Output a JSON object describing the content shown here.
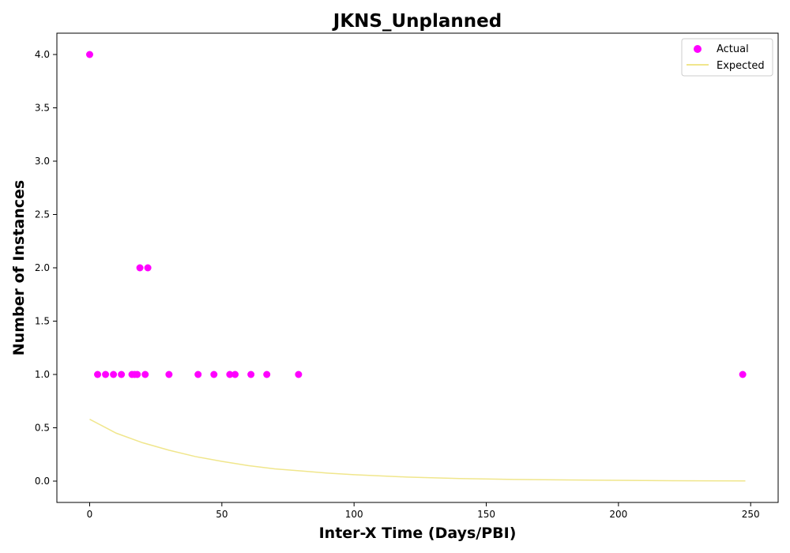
{
  "chart_data": {
    "type": "scatter",
    "title": "JKNS_Unplanned",
    "xlabel": "Inter-X Time (Days/PBI)",
    "ylabel": "Number of Instances",
    "xlim": [
      -12.4,
      260.4
    ],
    "ylim": [
      -0.2,
      4.2
    ],
    "xticks": [
      0,
      50,
      100,
      150,
      200,
      250
    ],
    "yticks": [
      0.0,
      0.5,
      1.0,
      1.5,
      2.0,
      2.5,
      3.0,
      3.5,
      4.0
    ],
    "grid": false,
    "legend_position": "top-right",
    "series": [
      {
        "name": "Actual",
        "kind": "scatter",
        "color": "#ff00ff",
        "x": [
          0,
          3,
          6,
          9,
          12,
          16,
          17,
          18,
          19,
          21,
          22,
          30,
          41,
          47,
          53,
          55,
          61,
          67,
          79,
          247
        ],
        "y": [
          4,
          1,
          1,
          1,
          1,
          1,
          1,
          1,
          2,
          1,
          2,
          1,
          1,
          1,
          1,
          1,
          1,
          1,
          1,
          1
        ]
      },
      {
        "name": "Expected",
        "kind": "line",
        "color": "#f0e68c",
        "x": [
          0,
          10,
          20,
          30,
          40,
          50,
          60,
          70,
          80,
          90,
          100,
          120,
          140,
          160,
          180,
          200,
          220,
          248
        ],
        "y": [
          0.58,
          0.45,
          0.36,
          0.29,
          0.23,
          0.185,
          0.145,
          0.115,
          0.095,
          0.075,
          0.06,
          0.038,
          0.024,
          0.016,
          0.011,
          0.007,
          0.004,
          0.002
        ]
      }
    ]
  }
}
